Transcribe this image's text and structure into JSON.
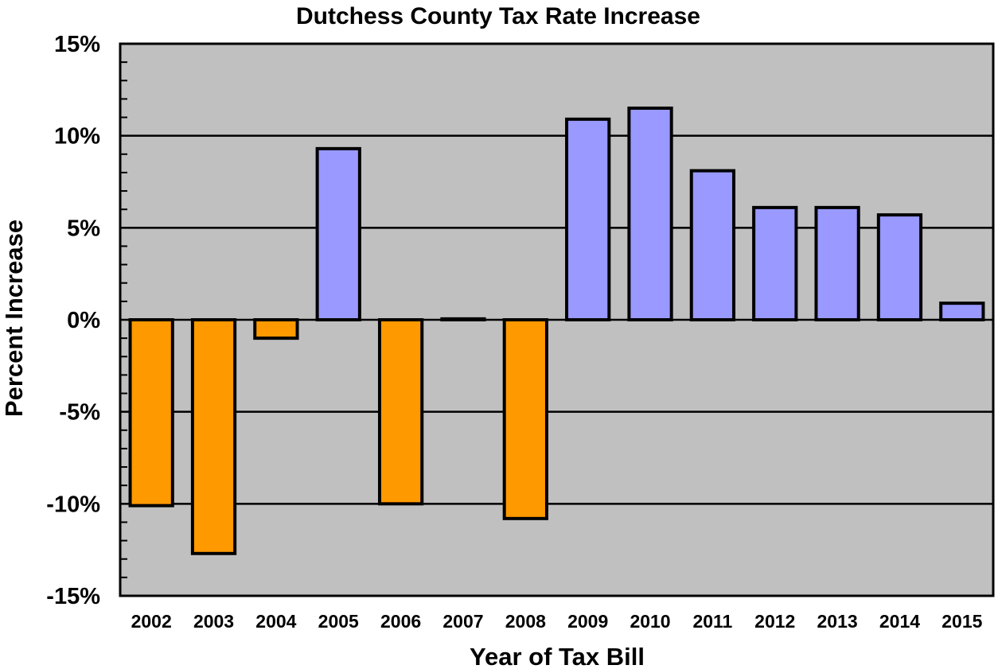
{
  "chart_data": {
    "type": "bar",
    "title": "Dutchess County Tax Rate Increase",
    "xlabel": "Year of Tax Bill",
    "ylabel": "Percent Increase",
    "categories": [
      "2002",
      "2003",
      "2004",
      "2005",
      "2006",
      "2007",
      "2008",
      "2009",
      "2010",
      "2011",
      "2012",
      "2013",
      "2014",
      "2015"
    ],
    "values": [
      -10.1,
      -12.7,
      -1.0,
      9.3,
      -10.0,
      0.05,
      -10.8,
      10.9,
      11.5,
      8.1,
      6.1,
      6.1,
      5.7,
      0.9
    ],
    "ylim": [
      -15,
      15
    ],
    "yticks": [
      15,
      10,
      5,
      0,
      -5,
      -10,
      -15
    ],
    "ytick_labels": [
      "15%",
      "10%",
      "5%",
      "0%",
      "-5%",
      "-10%",
      "-15%"
    ],
    "grid": true,
    "colors": {
      "positive": "#9999ff",
      "negative": "#ff9900",
      "plot_background": "#c0c0c0",
      "outline": "#000000"
    }
  }
}
